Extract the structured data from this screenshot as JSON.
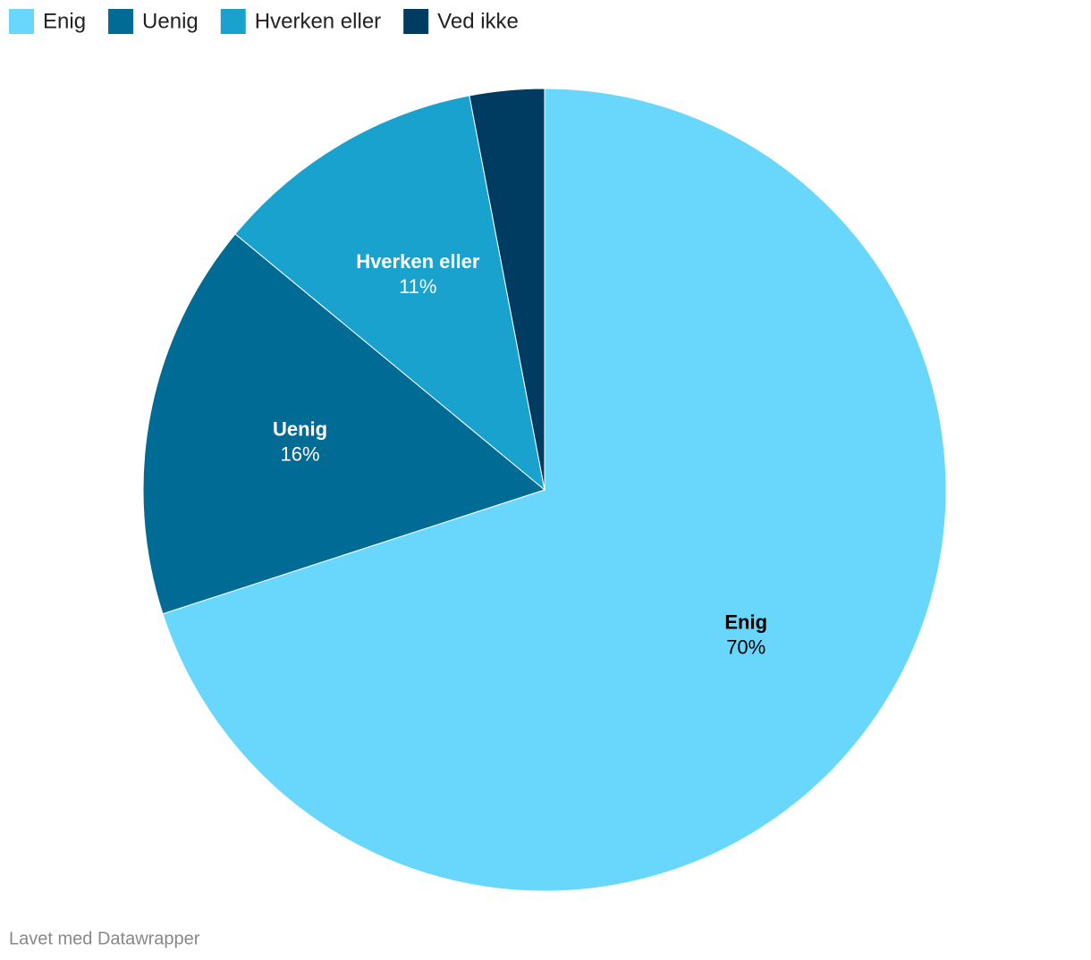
{
  "chart_data": {
    "type": "pie",
    "categories": [
      "Enig",
      "Uenig",
      "Hverken eller",
      "Ved ikke"
    ],
    "values": [
      70,
      16,
      11,
      3
    ],
    "value_labels": [
      "70%",
      "16%",
      "11%",
      null
    ],
    "colors": [
      "#69d7fc",
      "#006c96",
      "#1aa2cf",
      "#003c62"
    ]
  },
  "footer": "Lavet med Datawrapper"
}
